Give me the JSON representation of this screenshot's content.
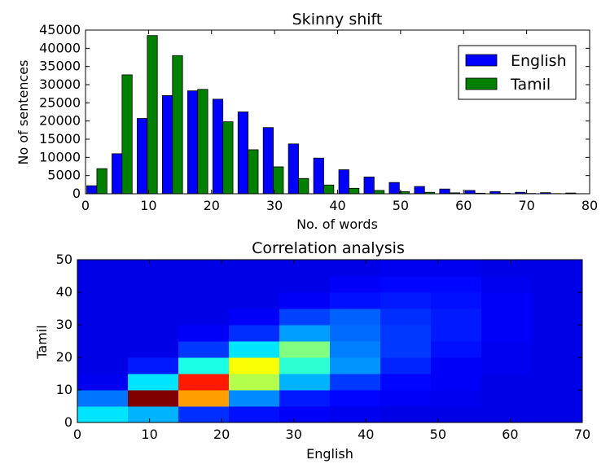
{
  "chart_data": [
    {
      "type": "bar",
      "title": "Skinny shift",
      "xlabel": "No. of words",
      "ylabel": "No of sentences",
      "xlim": [
        0,
        80
      ],
      "ylim": [
        0,
        45000
      ],
      "xticks": [
        "0",
        "10",
        "20",
        "30",
        "40",
        "50",
        "60",
        "70",
        "80"
      ],
      "yticks": [
        "0",
        "5000",
        "10000",
        "15000",
        "20000",
        "25000",
        "30000",
        "35000",
        "40000",
        "45000"
      ],
      "bin_starts": [
        0,
        4,
        8,
        12,
        16,
        20,
        24,
        28,
        32,
        36,
        40,
        44,
        48,
        52,
        56,
        60,
        64,
        68,
        72,
        76
      ],
      "bin_width": 4,
      "legend_position": "top-right",
      "series": [
        {
          "name": "English",
          "color": "#0000ff",
          "values": [
            2200,
            11000,
            20700,
            27000,
            28300,
            26000,
            22500,
            18200,
            13700,
            9800,
            6600,
            4600,
            3100,
            2000,
            1300,
            900,
            600,
            400,
            300,
            200
          ]
        },
        {
          "name": "Tamil",
          "color": "#008000",
          "values": [
            6900,
            32700,
            43500,
            38000,
            28700,
            19800,
            12100,
            7400,
            4200,
            2400,
            1500,
            900,
            600,
            400,
            250,
            150,
            100,
            80,
            50,
            30
          ]
        }
      ]
    },
    {
      "type": "heatmap",
      "title": "Correlation analysis",
      "xlabel": "English",
      "ylabel": "Tamil",
      "xlim": [
        0,
        70
      ],
      "ylim": [
        0,
        50
      ],
      "xticks": [
        "0",
        "10",
        "20",
        "30",
        "40",
        "50",
        "60",
        "70"
      ],
      "yticks": [
        "0",
        "10",
        "20",
        "30",
        "40",
        "50"
      ],
      "x_edges": [
        0,
        7,
        14,
        21,
        28,
        35,
        42,
        49,
        56,
        63,
        70
      ],
      "y_edges": [
        0,
        5,
        10,
        15,
        20,
        25,
        30,
        35,
        40,
        45,
        50
      ],
      "colormap": "jet",
      "cells": [
        [
          0.35,
          0.3,
          0.17,
          0.14,
          0.12,
          0.11,
          0.1,
          0.1,
          0.1,
          0.1
        ],
        [
          0.24,
          1.0,
          0.72,
          0.26,
          0.15,
          0.13,
          0.12,
          0.11,
          0.1,
          0.1
        ],
        [
          0.11,
          0.35,
          0.85,
          0.55,
          0.3,
          0.18,
          0.13,
          0.12,
          0.1,
          0.1
        ],
        [
          0.1,
          0.15,
          0.4,
          0.62,
          0.42,
          0.27,
          0.16,
          0.12,
          0.11,
          0.1
        ],
        [
          0.1,
          0.1,
          0.18,
          0.35,
          0.5,
          0.25,
          0.18,
          0.14,
          0.11,
          0.1
        ],
        [
          0.1,
          0.1,
          0.12,
          0.17,
          0.28,
          0.23,
          0.18,
          0.15,
          0.12,
          0.1
        ],
        [
          0.1,
          0.1,
          0.1,
          0.12,
          0.19,
          0.22,
          0.17,
          0.15,
          0.12,
          0.1
        ],
        [
          0.1,
          0.1,
          0.1,
          0.1,
          0.12,
          0.14,
          0.15,
          0.14,
          0.12,
          0.1
        ],
        [
          0.1,
          0.1,
          0.1,
          0.1,
          0.1,
          0.12,
          0.13,
          0.13,
          0.11,
          0.1
        ],
        [
          0.1,
          0.1,
          0.1,
          0.1,
          0.1,
          0.1,
          0.11,
          0.11,
          0.1,
          0.1
        ]
      ]
    }
  ]
}
